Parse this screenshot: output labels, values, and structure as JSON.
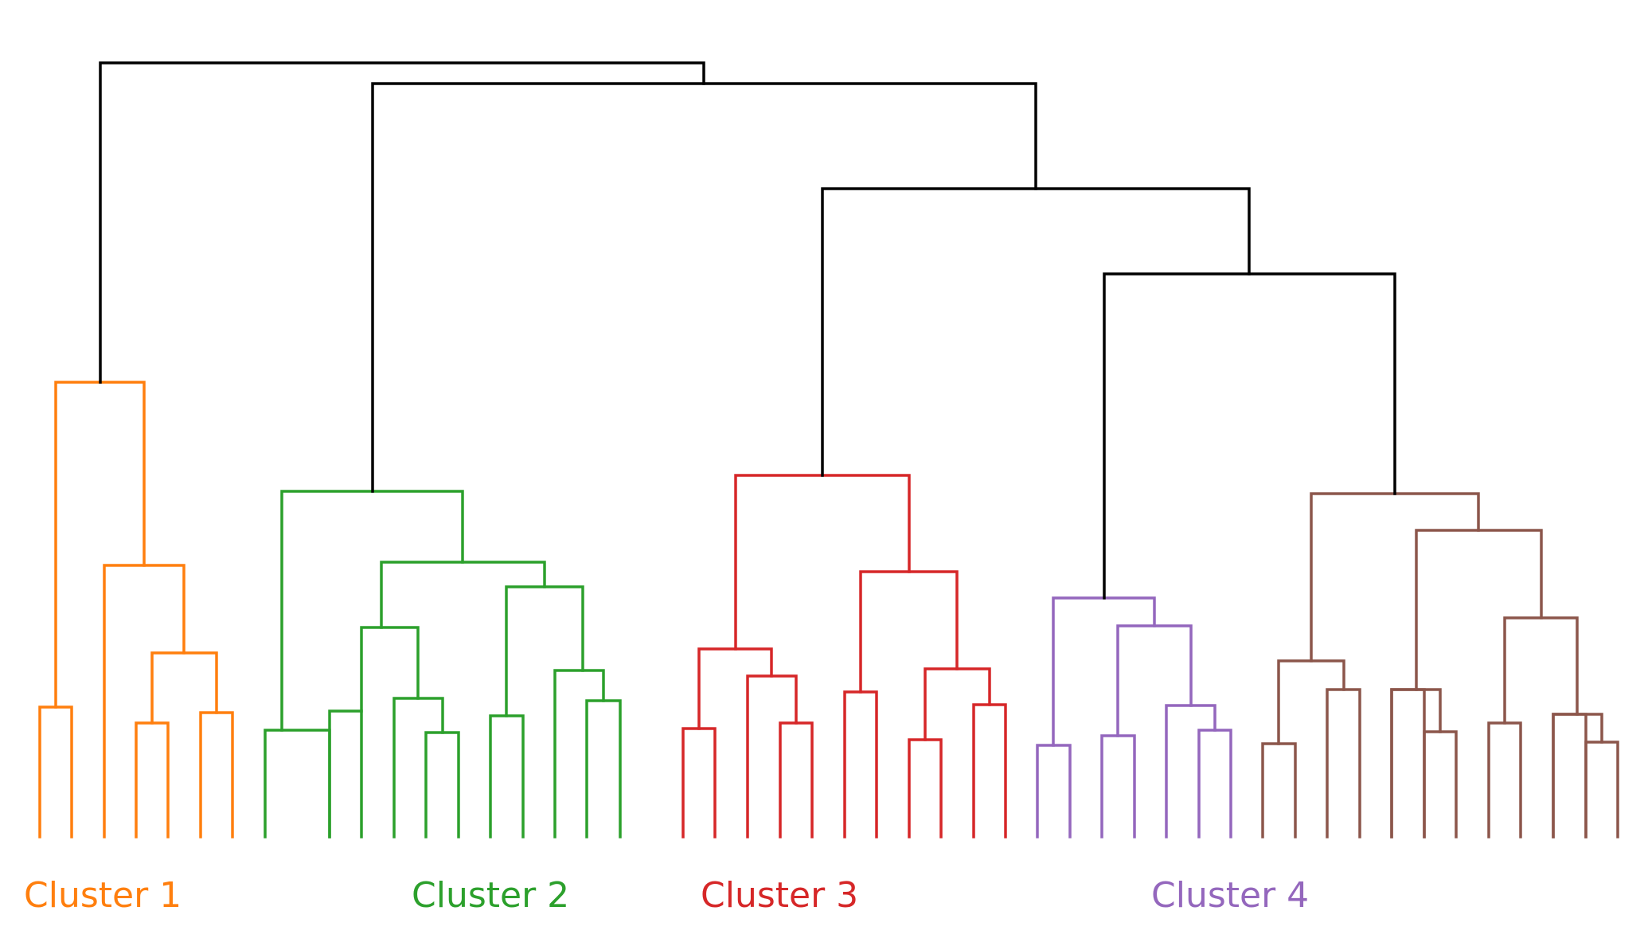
{
  "colors": {
    "link": "#000000",
    "c1": "#ff7f0e",
    "c2": "#2ca02c",
    "c3": "#d62728",
    "c4": "#9467bd",
    "c5": "#8c564b"
  },
  "labels": {
    "cluster1": "Cluster 1",
    "cluster2": "Cluster 2",
    "cluster3": "Cluster 3",
    "cluster4": "Cluster 4"
  }
}
